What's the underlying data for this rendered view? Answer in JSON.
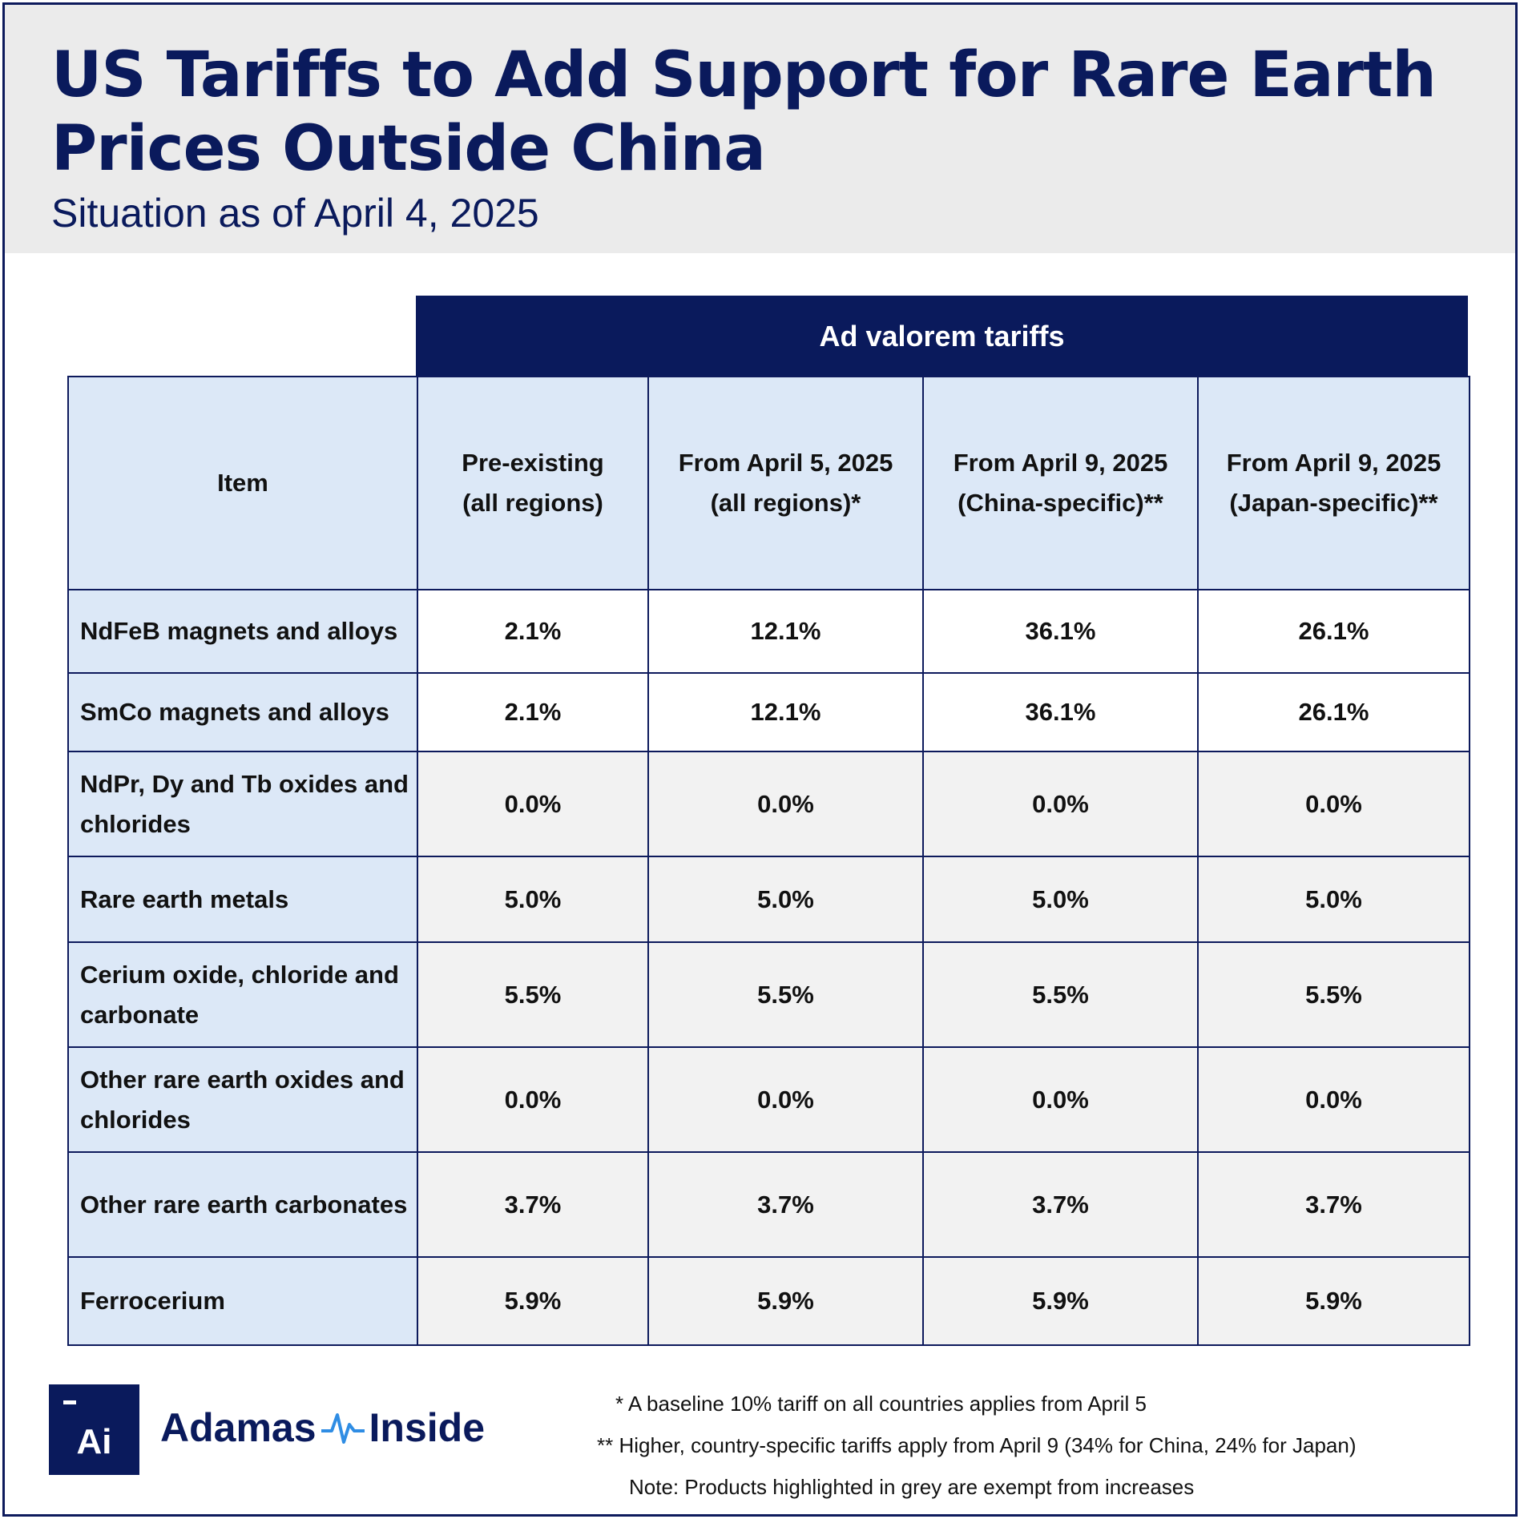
{
  "title": "US Tariffs to Add Support for Rare Earth Prices Outside China",
  "subtitle": "Situation as of April 4, 2025",
  "chart_data": {
    "type": "table",
    "group_header": "Ad valorem tariffs",
    "columns": [
      {
        "line1": "Item",
        "line2": ""
      },
      {
        "line1": "Pre-existing",
        "line2": "(all regions)"
      },
      {
        "line1": "From April 5, 2025",
        "line2": "(all regions)*"
      },
      {
        "line1": "From April 9, 2025",
        "line2": "(China-specific)**"
      },
      {
        "line1": "From April 9, 2025",
        "line2": "(Japan-specific)**"
      }
    ],
    "rows": [
      {
        "item": "NdFeB magnets and alloys",
        "values": [
          "2.1%",
          "12.1%",
          "36.1%",
          "26.1%"
        ],
        "exempt": false
      },
      {
        "item": "SmCo magnets and alloys",
        "values": [
          "2.1%",
          "12.1%",
          "36.1%",
          "26.1%"
        ],
        "exempt": false
      },
      {
        "item": "NdPr, Dy and Tb oxides and chlorides",
        "values": [
          "0.0%",
          "0.0%",
          "0.0%",
          "0.0%"
        ],
        "exempt": true
      },
      {
        "item": "Rare earth metals",
        "values": [
          "5.0%",
          "5.0%",
          "5.0%",
          "5.0%"
        ],
        "exempt": true
      },
      {
        "item": "Cerium oxide, chloride and carbonate",
        "values": [
          "5.5%",
          "5.5%",
          "5.5%",
          "5.5%"
        ],
        "exempt": true
      },
      {
        "item": "Other rare earth oxides and chlorides",
        "values": [
          "0.0%",
          "0.0%",
          "0.0%",
          "0.0%"
        ],
        "exempt": true
      },
      {
        "item": "Other rare earth carbonates",
        "values": [
          "3.7%",
          "3.7%",
          "3.7%",
          "3.7%"
        ],
        "exempt": true
      },
      {
        "item": "Ferrocerium",
        "values": [
          "5.9%",
          "5.9%",
          "5.9%",
          "5.9%"
        ],
        "exempt": true
      }
    ]
  },
  "notes": [
    "* A baseline 10% tariff on all countries applies from April 5",
    "** Higher, country-specific tariffs apply from April 9 (34% for China, 24% for Japan)",
    "Note: Products highlighted in grey are exempt from increases"
  ],
  "logo": {
    "mark": "Ai",
    "name_left": "Adamas",
    "name_right": "Inside",
    "icon": "pulse-icon"
  },
  "colors": {
    "navy": "#0a1a5c",
    "header_bg": "#ebebeb",
    "light_blue": "#dce8f7",
    "grey": "#f2f2f2",
    "pulse": "#2f8de4"
  }
}
